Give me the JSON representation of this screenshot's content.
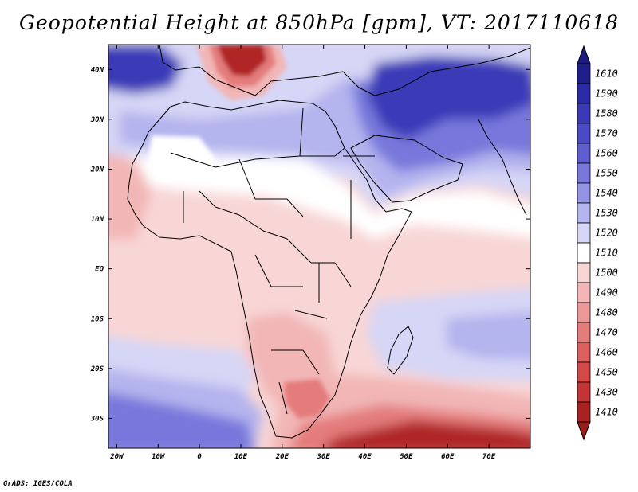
{
  "title": "Geopotential Height at 850hPa [gpm], VT: 2017110618",
  "credit": "GrADS: IGES/COLA",
  "map": {
    "projection": "latlon",
    "lon_range": [
      -22,
      80
    ],
    "lat_range": [
      -36,
      45
    ],
    "x_ticks": [
      {
        "lon": -20,
        "label": "20W"
      },
      {
        "lon": -10,
        "label": "10W"
      },
      {
        "lon": 0,
        "label": "0"
      },
      {
        "lon": 10,
        "label": "10E"
      },
      {
        "lon": 20,
        "label": "20E"
      },
      {
        "lon": 30,
        "label": "30E"
      },
      {
        "lon": 40,
        "label": "40E"
      },
      {
        "lon": 50,
        "label": "50E"
      },
      {
        "lon": 60,
        "label": "60E"
      },
      {
        "lon": 70,
        "label": "70E"
      }
    ],
    "y_ticks": [
      {
        "lat": 40,
        "label": "40N"
      },
      {
        "lat": 30,
        "label": "30N"
      },
      {
        "lat": 20,
        "label": "20N"
      },
      {
        "lat": 10,
        "label": "10N"
      },
      {
        "lat": 0,
        "label": "EQ"
      },
      {
        "lat": -10,
        "label": "10S"
      },
      {
        "lat": -20,
        "label": "20S"
      },
      {
        "lat": -30,
        "label": "30S"
      }
    ]
  },
  "colorbar": {
    "levels": [
      {
        "label": "1610",
        "color": "#1e1e8c"
      },
      {
        "label": "1590",
        "color": "#2b2ba8"
      },
      {
        "label": "1580",
        "color": "#3a3ab8"
      },
      {
        "label": "1570",
        "color": "#4a4ac6"
      },
      {
        "label": "1560",
        "color": "#5e5ed2"
      },
      {
        "label": "1550",
        "color": "#7878dc"
      },
      {
        "label": "1540",
        "color": "#9494e6"
      },
      {
        "label": "1530",
        "color": "#b4b4ee"
      },
      {
        "label": "1520",
        "color": "#d6d6f6"
      },
      {
        "label": "1510",
        "color": "#ffffff"
      },
      {
        "label": "1500",
        "color": "#f8d6d6"
      },
      {
        "label": "1490",
        "color": "#f2b6b6"
      },
      {
        "label": "1480",
        "color": "#ec9898"
      },
      {
        "label": "1470",
        "color": "#e47c7c"
      },
      {
        "label": "1460",
        "color": "#dc6060"
      },
      {
        "label": "1450",
        "color": "#d44848"
      },
      {
        "label": "1430",
        "color": "#c43434"
      },
      {
        "label": "1410",
        "color": "#a82222"
      }
    ],
    "top_arrow_color": "#1a1a80",
    "bottom_arrow_color": "#9a1c1c"
  },
  "field_colors": {
    "deep_blue": "#3a3ab8",
    "mid_blue": "#7878dc",
    "light_blue": "#b4b4ee",
    "pale_blue": "#d6d6f6",
    "white": "#ffffff",
    "pale_red": "#f8d6d6",
    "light_red": "#f2b6b6",
    "mid_red": "#e47c7c",
    "deep_red": "#b02626"
  }
}
